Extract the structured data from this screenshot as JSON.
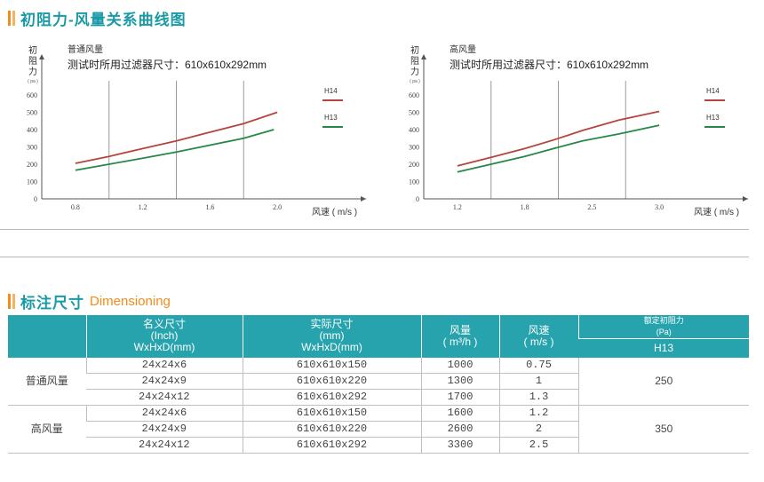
{
  "section1": {
    "title": "初阻力-风量关系曲线图"
  },
  "section2": {
    "title": "标注尺寸",
    "subtitle": "Dimensioning"
  },
  "chart_data": [
    {
      "type": "line",
      "title": "普通风量",
      "subtitle": "测试时所用过滤器尺寸：610x610x292mm",
      "ylabel_chars": [
        "初",
        "阻",
        "力"
      ],
      "yunit": "( pa )",
      "xlabel": "风速 ( m/s )",
      "xticks": [
        "0.8",
        "1.2",
        "1.6",
        "2.0"
      ],
      "yticks": [
        "0",
        "100",
        "200",
        "300",
        "400",
        "500",
        "600"
      ],
      "xlim": [
        0.6,
        2.3
      ],
      "ylim": [
        0,
        650
      ],
      "series": [
        {
          "name": "H14",
          "color": "#b5443f",
          "x": [
            0.8,
            1.0,
            1.2,
            1.4,
            1.6,
            1.8,
            2.0
          ],
          "y": [
            205,
            245,
            290,
            335,
            385,
            435,
            500
          ]
        },
        {
          "name": "H13",
          "color": "#27874a",
          "x": [
            0.8,
            1.0,
            1.2,
            1.4,
            1.6,
            1.8,
            1.98
          ],
          "y": [
            165,
            200,
            235,
            270,
            310,
            350,
            400
          ]
        }
      ]
    },
    {
      "type": "line",
      "title": "高风量",
      "subtitle": "测试时所用过滤器尺寸：610x610x292mm",
      "ylabel_chars": [
        "初",
        "阻",
        "力"
      ],
      "yunit": "( pa )",
      "xlabel": "风速 ( m/s )",
      "xticks": [
        "1.2",
        "1.8",
        "2.5",
        "3.0"
      ],
      "yticks": [
        "0",
        "100",
        "200",
        "300",
        "400",
        "500",
        "600"
      ],
      "xlim": [
        1.0,
        3.5
      ],
      "ylim": [
        0,
        650
      ],
      "series": [
        {
          "name": "H14",
          "color": "#b5443f",
          "x": [
            1.2,
            1.5,
            1.8,
            2.1,
            2.4,
            2.7,
            3.0
          ],
          "y": [
            190,
            240,
            290,
            340,
            395,
            455,
            505
          ]
        },
        {
          "name": "H13",
          "color": "#27874a",
          "x": [
            1.2,
            1.5,
            1.8,
            2.1,
            2.4,
            2.7,
            3.0
          ],
          "y": [
            155,
            200,
            245,
            290,
            335,
            375,
            425
          ]
        }
      ]
    }
  ],
  "table": {
    "headers": {
      "nominal": [
        "名义尺寸",
        "(Inch)",
        "WxHxD(mm)"
      ],
      "actual": [
        "实际尺寸",
        "(mm)",
        "WxHxD(mm)"
      ],
      "airflow": "风量",
      "airflow_unit": "( m³/h )",
      "velocity": "风速",
      "velocity_unit": "( m/s )",
      "resistance": "额定初阻力",
      "resistance_unit": "(Pa)",
      "h13": "H13"
    },
    "groups": [
      {
        "name": "普通风量",
        "resistance": "250",
        "rows": [
          {
            "nominal": "24x24x6",
            "actual": "610x610x150",
            "airflow": "1000",
            "velocity": "0.75"
          },
          {
            "nominal": "24x24x9",
            "actual": "610x610x220",
            "airflow": "1300",
            "velocity": "1"
          },
          {
            "nominal": "24x24x12",
            "actual": "610x610x292",
            "airflow": "1700",
            "velocity": "1.3"
          }
        ]
      },
      {
        "name": "高风量",
        "resistance": "350",
        "rows": [
          {
            "nominal": "24x24x6",
            "actual": "610x610x150",
            "airflow": "1600",
            "velocity": "1.2"
          },
          {
            "nominal": "24x24x9",
            "actual": "610x610x220",
            "airflow": "2600",
            "velocity": "2"
          },
          {
            "nominal": "24x24x12",
            "actual": "610x610x292",
            "airflow": "3300",
            "velocity": "2.5"
          }
        ]
      }
    ]
  }
}
